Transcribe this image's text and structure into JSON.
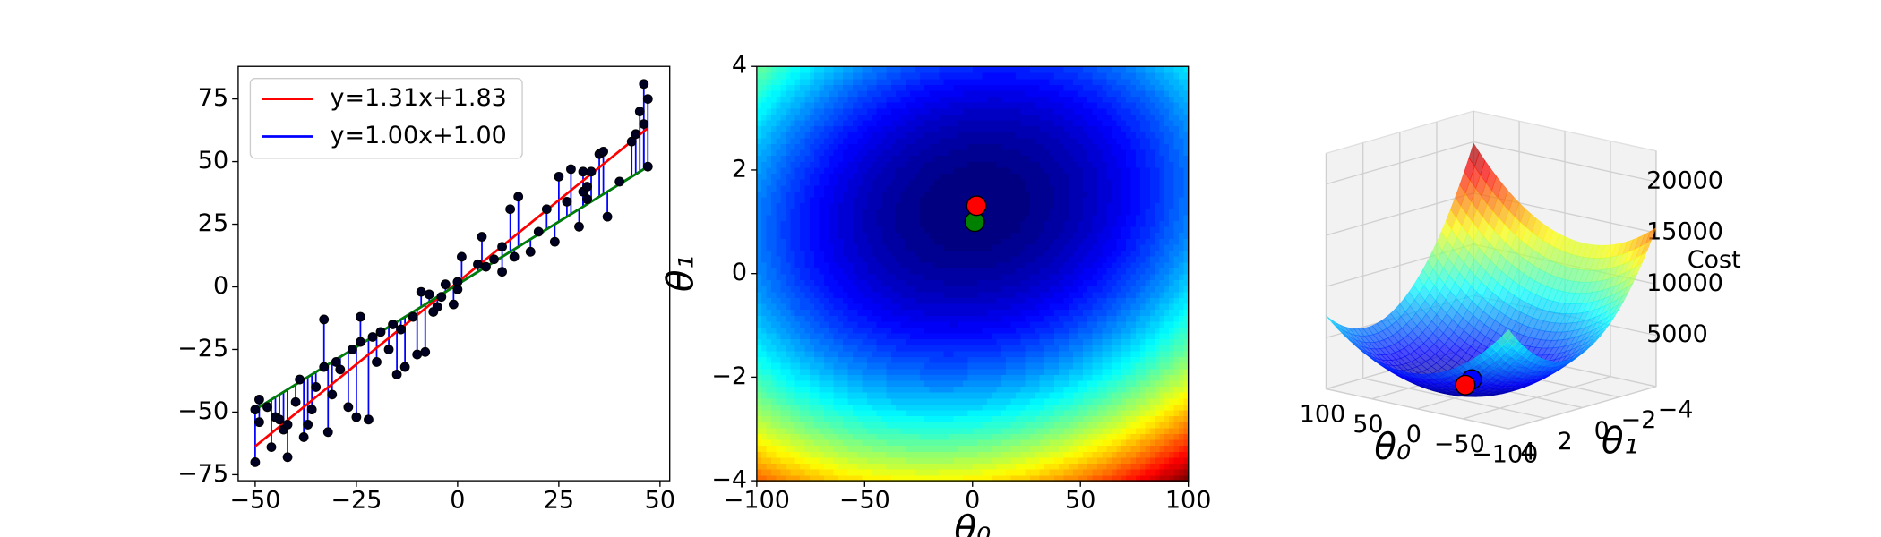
{
  "chart_data": [
    {
      "type": "scatter",
      "legend": "upper left",
      "xlim": [
        -54.2,
        52.4
      ],
      "ylim": [
        -77.4,
        88
      ],
      "xticks": [
        {
          "value": -50,
          "label": "−50"
        },
        {
          "value": -25,
          "label": "−25"
        },
        0,
        25,
        50
      ],
      "yticks": [
        {
          "value": -75,
          "label": "−75"
        },
        {
          "value": -50,
          "label": "−50"
        },
        {
          "value": -25,
          "label": "−25"
        },
        0,
        25,
        50,
        75
      ],
      "points": {
        "color": "#000022",
        "x": [
          -50,
          -50,
          -49,
          -49,
          -47,
          -46,
          -45,
          -44,
          -43,
          -42,
          -42,
          -40,
          -39,
          -38,
          -37,
          -36,
          -35,
          -33,
          -33,
          -32,
          -31,
          -30,
          -29,
          -27,
          -26,
          -25,
          -24,
          -24,
          -22,
          -21,
          -20,
          -19,
          -17,
          -16,
          -15,
          -14,
          -13,
          -11,
          -10,
          -9,
          -8,
          -7,
          -6,
          -5,
          -4,
          -3,
          -1,
          0,
          0,
          1,
          5,
          6,
          7,
          9,
          11,
          11,
          13,
          14,
          15,
          18,
          20,
          22,
          24,
          25,
          27,
          28,
          30,
          31,
          31,
          32,
          32,
          33,
          35,
          36,
          37,
          40,
          43,
          44,
          45,
          46,
          46,
          47,
          47
        ],
        "values": [
          -70,
          -49,
          -54,
          -45,
          -48,
          -64,
          -52,
          -53,
          -57,
          -68,
          -55,
          -46,
          -37,
          -60,
          -55,
          -49,
          -40,
          -32,
          -13,
          -58,
          -43,
          -30,
          -33,
          -48,
          -25,
          -52,
          -22,
          -12,
          -53,
          -20,
          -30,
          -18,
          -25,
          -15,
          -35,
          -17,
          -32,
          -12,
          -27,
          -2,
          -26,
          -3,
          -10,
          -8,
          -4,
          1,
          -7,
          2,
          -1,
          12,
          9,
          20,
          8,
          11,
          16,
          6,
          31,
          12,
          36,
          14,
          22,
          31,
          18,
          44,
          34,
          47,
          24,
          38,
          46,
          40,
          35,
          46,
          53,
          54,
          28,
          42,
          58,
          61,
          70,
          65,
          81,
          75,
          48
        ]
      },
      "lines": [
        {
          "name": "y=1.31x+1.83",
          "color": "red",
          "x": [
            -50,
            47
          ],
          "values": [
            -63.67,
            63.4
          ]
        },
        {
          "name": "y=1.00x+1.00",
          "color": "blue",
          "x": [
            -50,
            47
          ],
          "values": [
            -49,
            48
          ]
        },
        {
          "color": "green",
          "x": [
            -50,
            47
          ],
          "values": [
            -49,
            48
          ]
        }
      ]
    },
    {
      "type": "contour",
      "xlabel": "θ₀",
      "ylabel": "θ₁",
      "colormap": "jet",
      "xlim": [
        -100,
        100
      ],
      "ylim": [
        -4,
        4
      ],
      "xticks": [
        {
          "value": -100,
          "label": "−100"
        },
        {
          "value": -50,
          "label": "−50"
        },
        0,
        50,
        100
      ],
      "yticks": [
        {
          "value": -4,
          "label": "−4"
        },
        {
          "value": -2,
          "label": "−2"
        },
        0,
        2,
        4
      ],
      "points": [
        {
          "color": "green",
          "x": 1,
          "y": 1
        },
        {
          "color": "red",
          "x": 1.83,
          "y": 1.31
        }
      ]
    },
    {
      "type": "surface",
      "xlabel": "θ₀",
      "ylabel": "θ₁",
      "zlabel": "Cost",
      "colormap": "jet",
      "xlim": [
        -100,
        100
      ],
      "ylim": [
        -4,
        4
      ],
      "zlim": [
        0,
        23000
      ],
      "xticks": [
        100,
        50,
        0,
        {
          "value": -50,
          "label": "−50"
        },
        {
          "value": -100,
          "label": "−100"
        }
      ],
      "yticks": [
        {
          "value": -4,
          "label": "−4"
        },
        {
          "value": -2,
          "label": "−2"
        },
        0,
        2,
        4
      ],
      "zticks": [
        5000,
        10000,
        15000,
        20000
      ],
      "points": [
        {
          "color": "blue",
          "x": 1,
          "y": 1,
          "z": 1300
        },
        {
          "color": "red",
          "x": 1.83,
          "y": 1.31,
          "z": 900
        }
      ]
    }
  ]
}
